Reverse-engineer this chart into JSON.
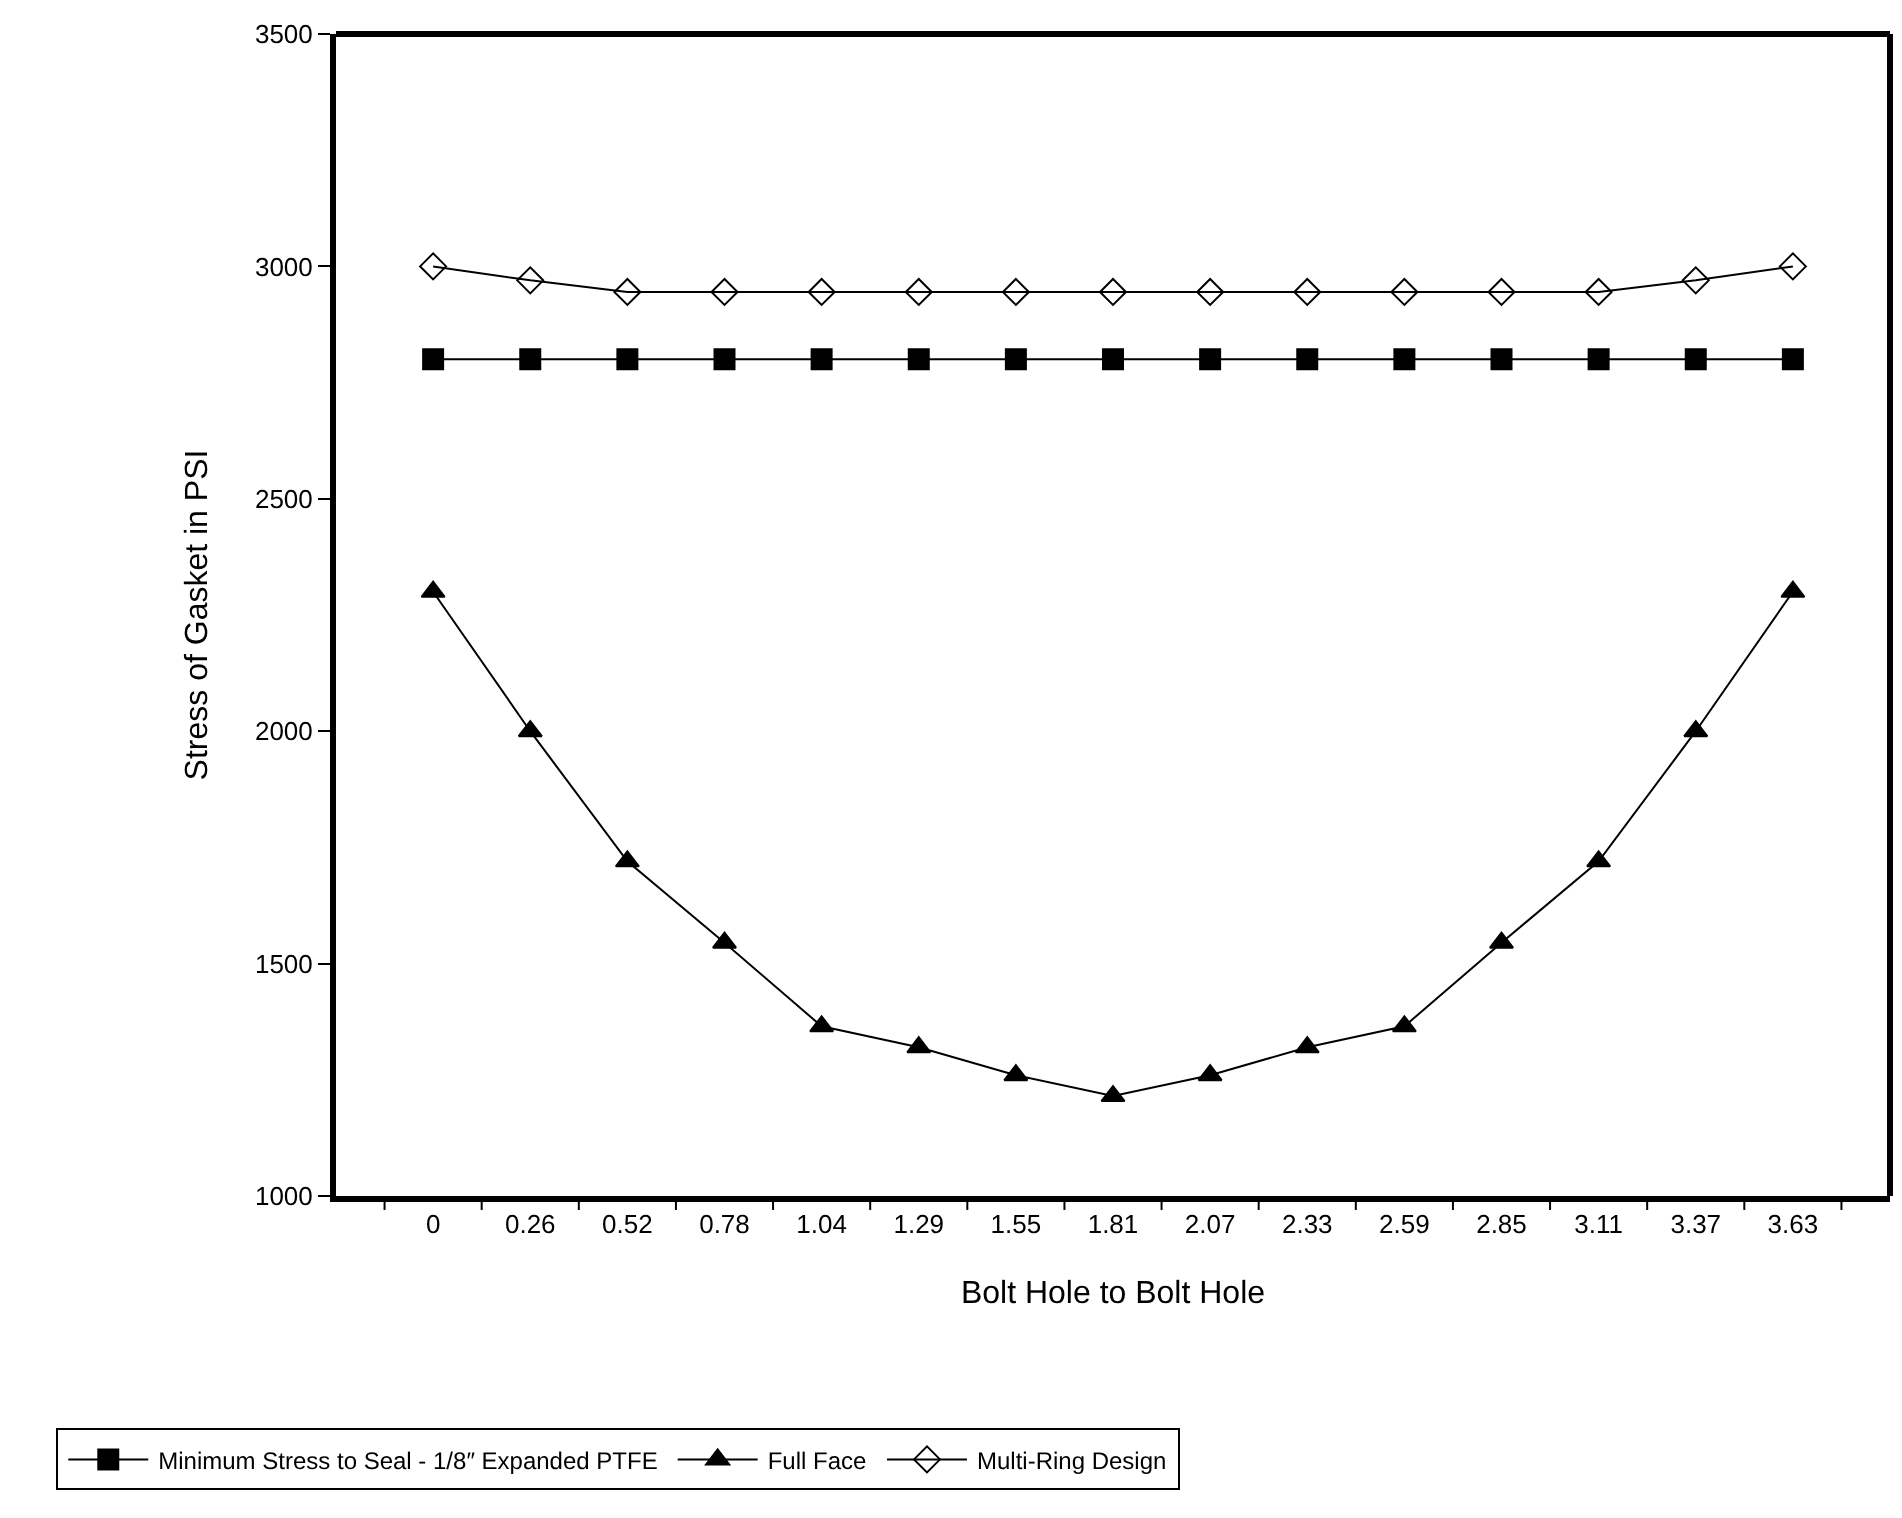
{
  "chart_data": {
    "type": "line",
    "xlabel": "Bolt Hole to Bolt Hole",
    "ylabel": "Stress of Gasket in PSI",
    "categories": [
      "0",
      "0.26",
      "0.52",
      "0.78",
      "1.04",
      "1.29",
      "1.55",
      "1.81",
      "2.07",
      "2.33",
      "2.59",
      "2.85",
      "3.11",
      "3.37",
      "3.63"
    ],
    "series": [
      {
        "name": "Minimum Stress to Seal - 1/8″ Expanded PTFE",
        "color": "#000000",
        "marker": "square",
        "values": [
          2800,
          2800,
          2800,
          2800,
          2800,
          2800,
          2800,
          2800,
          2800,
          2800,
          2800,
          2800,
          2800,
          2800,
          2800
        ]
      },
      {
        "name": "Full Face",
        "color": "#000000",
        "marker": "triangle",
        "values": [
          2300,
          2000,
          1720,
          1545,
          1365,
          1320,
          1260,
          1215,
          1260,
          1320,
          1365,
          1545,
          1720,
          2000,
          2300
        ]
      },
      {
        "name": "Multi-Ring Design",
        "color": "#000000",
        "marker": "diamond-open",
        "values": [
          3000,
          2970,
          2945,
          2945,
          2945,
          2945,
          2945,
          2945,
          2945,
          2945,
          2945,
          2945,
          2945,
          2970,
          3000
        ]
      }
    ],
    "ylim": [
      1000,
      3500
    ],
    "yticks": [
      1000,
      1500,
      2000,
      2500,
      3000,
      3500
    ],
    "legend": "bottom",
    "line_style": "solid"
  }
}
